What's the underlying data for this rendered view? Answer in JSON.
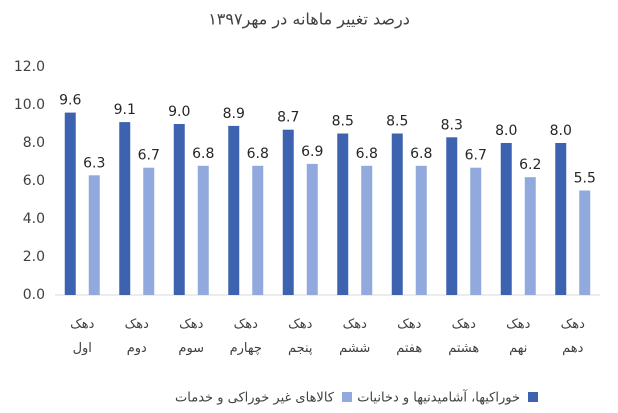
{
  "chart_data": {
    "type": "bar",
    "title": "درصد تغییر ماهانه در مهر۱۳۹۷",
    "categories": [
      "دهک\nاول",
      "دهک\nدوم",
      "دهک\nسوم",
      "دهک\nچهارم",
      "دهک\nپنجم",
      "دهک\nششم",
      "دهک\nهفتم",
      "دهک\nهشتم",
      "دهک\nنهم",
      "دهک\nدهم"
    ],
    "series": [
      {
        "name": "خوراکیها، آشامیدنیها و دخانیات",
        "color": "#3d63b0",
        "values": [
          9.6,
          9.1,
          9.0,
          8.9,
          8.7,
          8.5,
          8.5,
          8.3,
          8.0,
          8.0
        ],
        "value_labels": [
          "9.6",
          "9.1",
          "9.0",
          "8.9",
          "8.7",
          "8.5",
          "8.5",
          "8.3",
          "8.0",
          "8.0"
        ]
      },
      {
        "name": "کالاهای غیر خوراکی و خدمات",
        "color": "#91a9dc",
        "values": [
          6.3,
          6.7,
          6.8,
          6.8,
          6.9,
          6.8,
          6.8,
          6.7,
          6.2,
          5.5
        ],
        "value_labels": [
          "6.3",
          "6.7",
          "6.8",
          "6.8",
          "6.9",
          "6.8",
          "6.8",
          "6.7",
          "6.2",
          "5.5"
        ]
      }
    ],
    "ylim": [
      0,
      12
    ],
    "yticks": [
      {
        "value": 0,
        "label": "0.0"
      },
      {
        "value": 2,
        "label": "2.0"
      },
      {
        "value": 4,
        "label": "4.0"
      },
      {
        "value": 6,
        "label": "6.0"
      },
      {
        "value": 8,
        "label": "8.0"
      },
      {
        "value": 10,
        "label": "10.0"
      },
      {
        "value": 12,
        "label": "12.0"
      }
    ],
    "grid": false
  }
}
